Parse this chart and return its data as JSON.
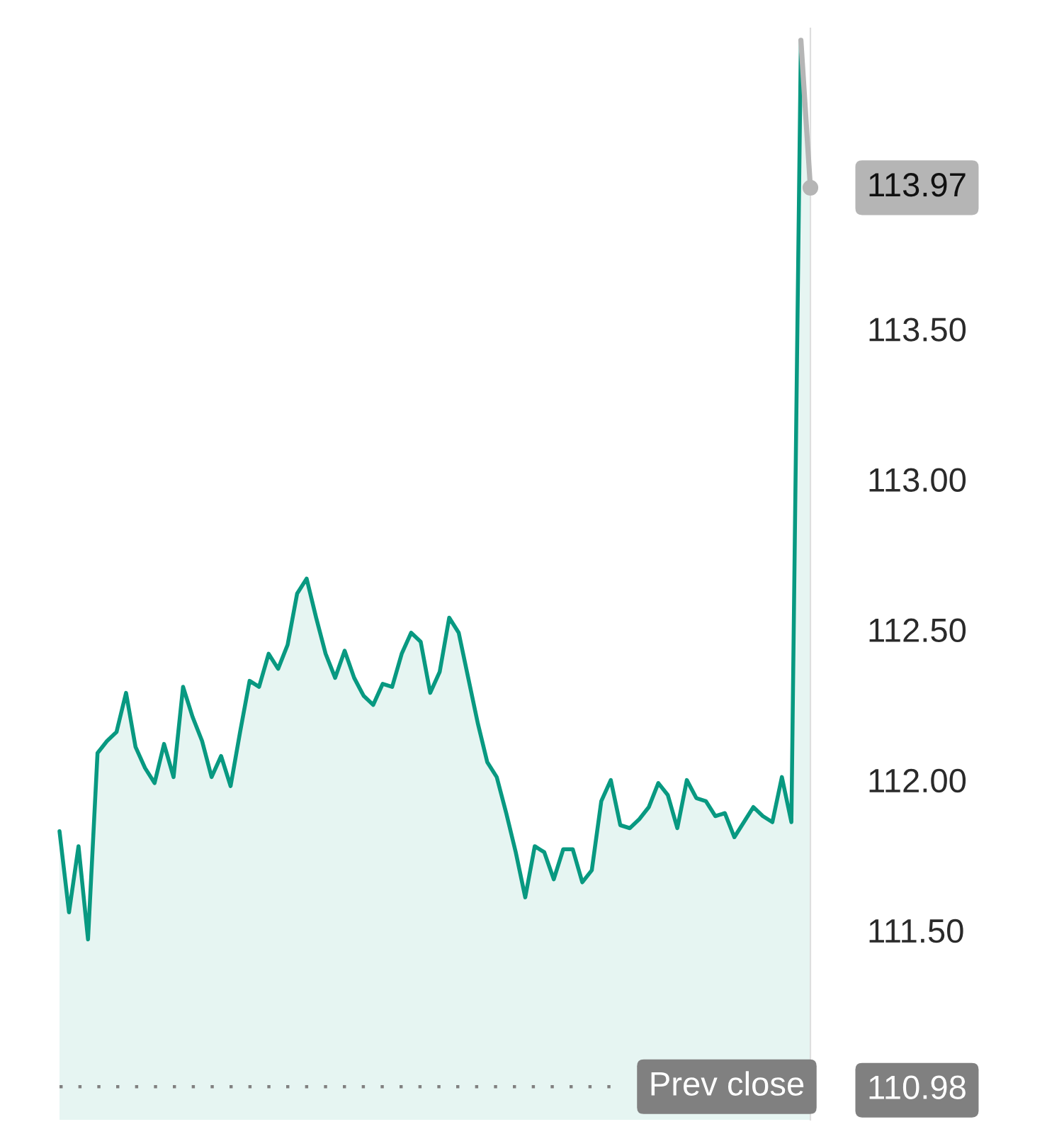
{
  "chart_data": {
    "type": "area",
    "categories": [
      null,
      null,
      null,
      null,
      null,
      null,
      null,
      null,
      null,
      null,
      null,
      null,
      null,
      null,
      null,
      null,
      null,
      null,
      null,
      null,
      null,
      null,
      null,
      null,
      null,
      null,
      null,
      null,
      null,
      null,
      null,
      null,
      null,
      null,
      null,
      null,
      null,
      null,
      null,
      null,
      null,
      null,
      null,
      null,
      null,
      null,
      null,
      null,
      null,
      null,
      null,
      null,
      null,
      null,
      null,
      null,
      null,
      null,
      null,
      null,
      null,
      null,
      null,
      null,
      null,
      null,
      null,
      null,
      null,
      null,
      null,
      null,
      null,
      null,
      null,
      null,
      null,
      null,
      null,
      null
    ],
    "ylim": [
      110.87,
      114.5
    ],
    "yticks": [
      {
        "value": 110.98,
        "label": "110.98"
      },
      {
        "value": 111.5,
        "label": "111.50"
      },
      {
        "value": 112.0,
        "label": "112.00"
      },
      {
        "value": 112.5,
        "label": "112.50"
      },
      {
        "value": 113.0,
        "label": "113.00"
      },
      {
        "value": 113.5,
        "label": "113.50"
      }
    ],
    "tick_labels": "y",
    "series": [
      {
        "color": "#089981",
        "values": [
          111.83,
          111.56,
          111.78,
          111.47,
          112.09,
          112.13,
          112.16,
          112.29,
          112.11,
          112.04,
          111.99,
          112.12,
          112.01,
          112.31,
          112.21,
          112.13,
          112.01,
          112.08,
          111.98,
          112.16,
          112.33,
          112.31,
          112.42,
          112.37,
          112.45,
          112.62,
          112.67,
          112.54,
          112.42,
          112.34,
          112.43,
          112.34,
          112.28,
          112.25,
          112.32,
          112.31,
          112.42,
          112.49,
          112.46,
          112.29,
          112.36,
          112.54,
          112.49,
          112.34,
          112.19,
          112.06,
          112.01,
          111.89,
          111.76,
          111.61,
          111.78,
          111.76,
          111.67,
          111.77,
          111.77,
          111.66,
          111.7,
          111.93,
          112.0,
          111.85,
          111.84,
          111.87,
          111.91,
          111.99,
          111.95,
          111.84,
          112.0,
          111.94,
          111.93,
          111.88,
          111.89,
          111.81,
          111.86,
          111.91,
          111.88,
          111.86,
          112.01,
          111.86,
          114.46,
          113.97
        ]
      },
      {
        "type": "line",
        "color": "#b5b5b5",
        "values": [
          null,
          null,
          null,
          null,
          null,
          null,
          null,
          null,
          null,
          null,
          null,
          null,
          null,
          null,
          null,
          null,
          null,
          null,
          null,
          null,
          null,
          null,
          null,
          null,
          null,
          null,
          null,
          null,
          null,
          null,
          null,
          null,
          null,
          null,
          null,
          null,
          null,
          null,
          null,
          null,
          null,
          null,
          null,
          null,
          null,
          null,
          null,
          null,
          null,
          null,
          null,
          null,
          null,
          null,
          null,
          null,
          null,
          null,
          null,
          null,
          null,
          null,
          null,
          null,
          null,
          null,
          null,
          null,
          null,
          null,
          null,
          null,
          null,
          null,
          null,
          null,
          null,
          null,
          114.46,
          113.97
        ],
        "value_labels": [
          null,
          null,
          null,
          null,
          null,
          null,
          null,
          null,
          null,
          null,
          null,
          null,
          null,
          null,
          null,
          null,
          null,
          null,
          null,
          null,
          null,
          null,
          null,
          null,
          null,
          null,
          null,
          null,
          null,
          null,
          null,
          null,
          null,
          null,
          null,
          null,
          null,
          null,
          null,
          null,
          null,
          null,
          null,
          null,
          null,
          null,
          null,
          null,
          null,
          null,
          null,
          null,
          null,
          null,
          null,
          null,
          null,
          null,
          null,
          null,
          null,
          null,
          null,
          null,
          null,
          null,
          null,
          null,
          null,
          null,
          null,
          null,
          null,
          null,
          null,
          null,
          null,
          null,
          null,
          "113.97"
        ]
      }
    ],
    "ref_lines": [
      {
        "axis": "y",
        "value": 110.98,
        "label": "Prev close",
        "color": "#808080",
        "line_style": "dotted"
      }
    ]
  }
}
